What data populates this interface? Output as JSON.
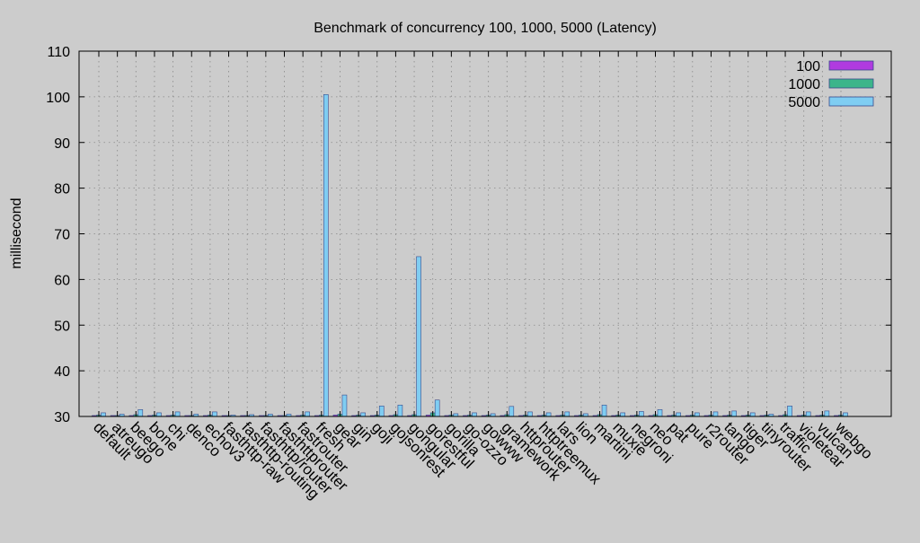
{
  "chart_data": {
    "type": "bar",
    "title": "Benchmark of concurrency 100, 1000, 5000 (Latency)",
    "xlabel": "",
    "ylabel": "millisecond",
    "ylim": [
      30,
      110
    ],
    "yticks": [
      30,
      40,
      50,
      60,
      70,
      80,
      90,
      100,
      110
    ],
    "grid": true,
    "legend_position": "top-right",
    "categories": [
      "default",
      "atreugo",
      "beego",
      "bone",
      "chi",
      "denco",
      "echov3",
      "fasthttp-raw",
      "fasthttp-routing",
      "fasthttp/router",
      "fasthttprouter",
      "fastrouter",
      "fresh",
      "gear",
      "gin",
      "goji",
      "gojsonrest",
      "gongular",
      "gorestful",
      "gorilla",
      "go-ozzo",
      "gowww",
      "gramework",
      "httprouter",
      "httptreemux",
      "lars",
      "lion",
      "martini",
      "muxie",
      "negroni",
      "neo",
      "pat",
      "pure",
      "r2router",
      "tango",
      "tiger",
      "tinyrouter",
      "traffic",
      "violetear",
      "vulcan",
      "webgo"
    ],
    "series": [
      {
        "name": "100",
        "color": "#b03be0",
        "values": [
          30.2,
          30.2,
          30.2,
          30.2,
          30.2,
          30.2,
          30.2,
          30.2,
          30.2,
          30.2,
          30.2,
          30.2,
          30.2,
          30.3,
          30.2,
          30.2,
          30.2,
          30.2,
          30.3,
          30.2,
          30.2,
          30.2,
          30.2,
          30.2,
          30.2,
          30.2,
          30.2,
          30.2,
          30.2,
          30.2,
          30.2,
          30.2,
          30.2,
          30.2,
          30.2,
          30.2,
          30.2,
          30.2,
          30.2,
          30.2,
          30.2
        ]
      },
      {
        "name": "1000",
        "color": "#3cb58a",
        "values": [
          30.3,
          30.2,
          30.4,
          30.3,
          30.3,
          30.2,
          30.3,
          30.2,
          30.2,
          30.2,
          30.2,
          30.3,
          30.3,
          30.5,
          30.3,
          30.3,
          30.4,
          30.4,
          30.8,
          30.3,
          30.3,
          30.3,
          30.4,
          30.3,
          30.3,
          30.3,
          30.3,
          30.4,
          30.3,
          30.3,
          30.4,
          30.3,
          30.3,
          30.3,
          30.3,
          30.3,
          30.3,
          30.4,
          30.3,
          30.3,
          30.3
        ]
      },
      {
        "name": "5000",
        "color": "#7fcdf2",
        "values": [
          30.8,
          30.5,
          31.5,
          30.8,
          31.0,
          30.5,
          31.0,
          30.3,
          30.4,
          30.5,
          30.5,
          31.0,
          100.5,
          34.7,
          30.8,
          32.3,
          32.5,
          65.0,
          33.6,
          30.6,
          30.8,
          30.6,
          32.2,
          31.0,
          30.8,
          31.0,
          30.6,
          32.5,
          30.8,
          31.1,
          31.5,
          30.8,
          30.8,
          31.0,
          31.2,
          30.8,
          30.5,
          32.3,
          31.0,
          31.2,
          30.8
        ]
      }
    ]
  }
}
